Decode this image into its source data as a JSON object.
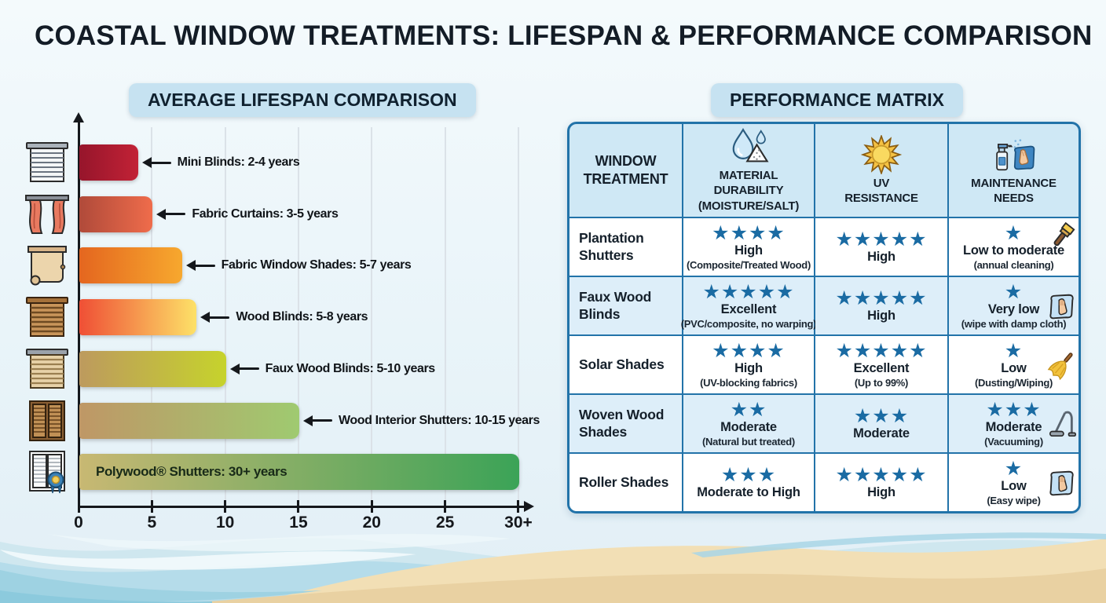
{
  "title": "COASTAL WINDOW TREATMENTS: LIFESPAN & PERFORMANCE COMPARISON",
  "lifespan_chart": {
    "heading": "AVERAGE LIFESPAN COMPARISON",
    "axis": {
      "tick_labels": [
        "0",
        "5",
        "10",
        "15",
        "20",
        "25",
        "30+"
      ],
      "tick_values": [
        0,
        5,
        10,
        15,
        20,
        25,
        30
      ]
    },
    "items": [
      {
        "icon": "mini-blinds-icon",
        "label": "Mini Blinds: 2-4 years",
        "value": 4,
        "bar_color_start": "#96152b",
        "bar_color_end": "#c22236",
        "label_inside": false
      },
      {
        "icon": "fabric-curtains-icon",
        "label": "Fabric Curtains: 3-5 years",
        "value": 5,
        "bar_color_start": "#b04a3a",
        "bar_color_end": "#ef6c4b",
        "label_inside": false
      },
      {
        "icon": "roller-shade-icon",
        "label": "Fabric Window Shades: 5-7 years",
        "value": 7,
        "bar_color_start": "#e4661f",
        "bar_color_end": "#f7a82e",
        "label_inside": false
      },
      {
        "icon": "wood-blinds-icon",
        "label": "Wood Blinds: 5-8 years",
        "value": 8,
        "bar_color_start": "#ef4f35",
        "bar_color_end": "#fde168",
        "label_inside": false
      },
      {
        "icon": "faux-wood-blinds-icon",
        "label": "Faux Wood Blinds: 5-10 years",
        "value": 10,
        "bar_color_start": "#bd9a5e",
        "bar_color_end": "#c6d32c",
        "label_inside": false
      },
      {
        "icon": "wood-shutters-icon",
        "label": "Wood Interior Shutters: 10-15 years",
        "value": 15,
        "bar_color_start": "#bf9766",
        "bar_color_end": "#9fca70",
        "label_inside": false
      },
      {
        "icon": "polywood-shutters-icon",
        "label": "Polywood® Shutters: 30+ years",
        "value": 30,
        "bar_color_start": "#c8b873",
        "bar_color_end": "#3ba357",
        "label_inside": true
      }
    ]
  },
  "performance_matrix": {
    "heading": "PERFORMANCE MATRIX",
    "columns": [
      {
        "label": "WINDOW\nTREATMENT",
        "icon": null
      },
      {
        "label": "MATERIAL\nDURABILITY\n(MOISTURE/SALT)",
        "icon": "droplet-salt-icon"
      },
      {
        "label": "UV\nRESISTANCE",
        "icon": "sun-icon"
      },
      {
        "label": "MAINTENANCE\nNEEDS",
        "icon": "spray-cloth-icon"
      }
    ],
    "rows": [
      {
        "treatment": "Plantation Shutters",
        "durability": {
          "stars": 4,
          "rating": "High",
          "note": "(Composite/Treated Wood)"
        },
        "uv": {
          "stars": 5,
          "rating": "High",
          "note": ""
        },
        "maintenance": {
          "stars": 1,
          "rating": "Low to moderate",
          "note": "(annual cleaning)",
          "icon": "paintbrush-icon"
        }
      },
      {
        "treatment": "Faux Wood Blinds",
        "durability": {
          "stars": 5,
          "rating": "Excellent",
          "note": "(PVC/composite, no warping)"
        },
        "uv": {
          "stars": 5,
          "rating": "High",
          "note": ""
        },
        "maintenance": {
          "stars": 1,
          "rating": "Very low",
          "note": "(wipe with damp cloth)",
          "icon": "cloth-icon"
        }
      },
      {
        "treatment": "Solar Shades",
        "durability": {
          "stars": 4,
          "rating": "High",
          "note": "(UV-blocking fabrics)"
        },
        "uv": {
          "stars": 5,
          "rating": "Excellent",
          "note": "(Up to 99%)"
        },
        "maintenance": {
          "stars": 1,
          "rating": "Low",
          "note": "(Dusting/Wiping)",
          "icon": "duster-icon"
        }
      },
      {
        "treatment": "Woven Wood Shades",
        "durability": {
          "stars": 2,
          "rating": "Moderate",
          "note": "(Natural but treated)"
        },
        "uv": {
          "stars": 3,
          "rating": "Moderate",
          "note": ""
        },
        "maintenance": {
          "stars": 3,
          "rating": "Moderate",
          "note": "(Vacuuming)",
          "icon": "vacuum-icon"
        }
      },
      {
        "treatment": "Roller Shades",
        "durability": {
          "stars": 3,
          "rating": "Moderate to High",
          "note": ""
        },
        "uv": {
          "stars": 5,
          "rating": "High",
          "note": ""
        },
        "maintenance": {
          "stars": 1,
          "rating": "Low",
          "note": "(Easy wipe)",
          "icon": "cloth-icon"
        }
      }
    ]
  },
  "chart_data": [
    {
      "type": "bar",
      "orientation": "horizontal",
      "title": "AVERAGE LIFESPAN COMPARISON",
      "categories": [
        "Mini Blinds",
        "Fabric Curtains",
        "Fabric Window Shades",
        "Wood Blinds",
        "Faux Wood Blinds",
        "Wood Interior Shutters",
        "Polywood® Shutters"
      ],
      "values": [
        4,
        5,
        7,
        8,
        10,
        15,
        30
      ],
      "bar_labels": [
        "Mini Blinds: 2-4 years",
        "Fabric Curtains: 3-5 years",
        "Fabric Window Shades: 5-7 years",
        "Wood Blinds: 5-8 years",
        "Faux Wood Blinds: 5-10 years",
        "Wood Interior Shutters: 10-15 years",
        "Polywood® Shutters: 30+ years"
      ],
      "xlabel": "",
      "ylabel": "",
      "xlim": [
        0,
        30
      ],
      "xticks": [
        0,
        5,
        10,
        15,
        20,
        25,
        30
      ],
      "xtick_labels": [
        "0",
        "5",
        "10",
        "15",
        "20",
        "25",
        "30+"
      ],
      "grid": "vertical-light",
      "legend": "none"
    },
    {
      "type": "table",
      "title": "PERFORMANCE MATRIX",
      "columns": [
        "WINDOW TREATMENT",
        "MATERIAL DURABILITY (MOISTURE/SALT)",
        "UV RESISTANCE",
        "MAINTENANCE NEEDS"
      ],
      "rows": [
        [
          "Plantation Shutters",
          "4/5 stars — High (Composite/Treated Wood)",
          "5/5 stars — High",
          "1/5 stars — Low to moderate (annual cleaning)"
        ],
        [
          "Faux Wood Blinds",
          "5/5 stars — Excellent (PVC/composite, no warping)",
          "5/5 stars — High",
          "1/5 stars — Very low (wipe with damp cloth)"
        ],
        [
          "Solar Shades",
          "4/5 stars — High (UV-blocking fabrics)",
          "5/5 stars — Excellent (Up to 99%)",
          "1/5 stars — Low (Dusting/Wiping)"
        ],
        [
          "Woven Wood Shades",
          "2/5 stars — Moderate (Natural but treated)",
          "3/5 stars — Moderate",
          "3/5 stars — Moderate (Vacuuming)"
        ],
        [
          "Roller Shades",
          "3/5 stars — Moderate to High",
          "5/5 stars — High",
          "1/5 stars — Low (Easy wipe)"
        ]
      ]
    }
  ],
  "colors": {
    "star": "#1a6ba3",
    "table_border": "#2273a9",
    "table_header_bg": "#cfe8f5",
    "row_bg": "#ffffff",
    "row_alt_bg": "#ddeef9",
    "badge_bg": "#c6e2f1",
    "background": "#eaf4f9"
  }
}
